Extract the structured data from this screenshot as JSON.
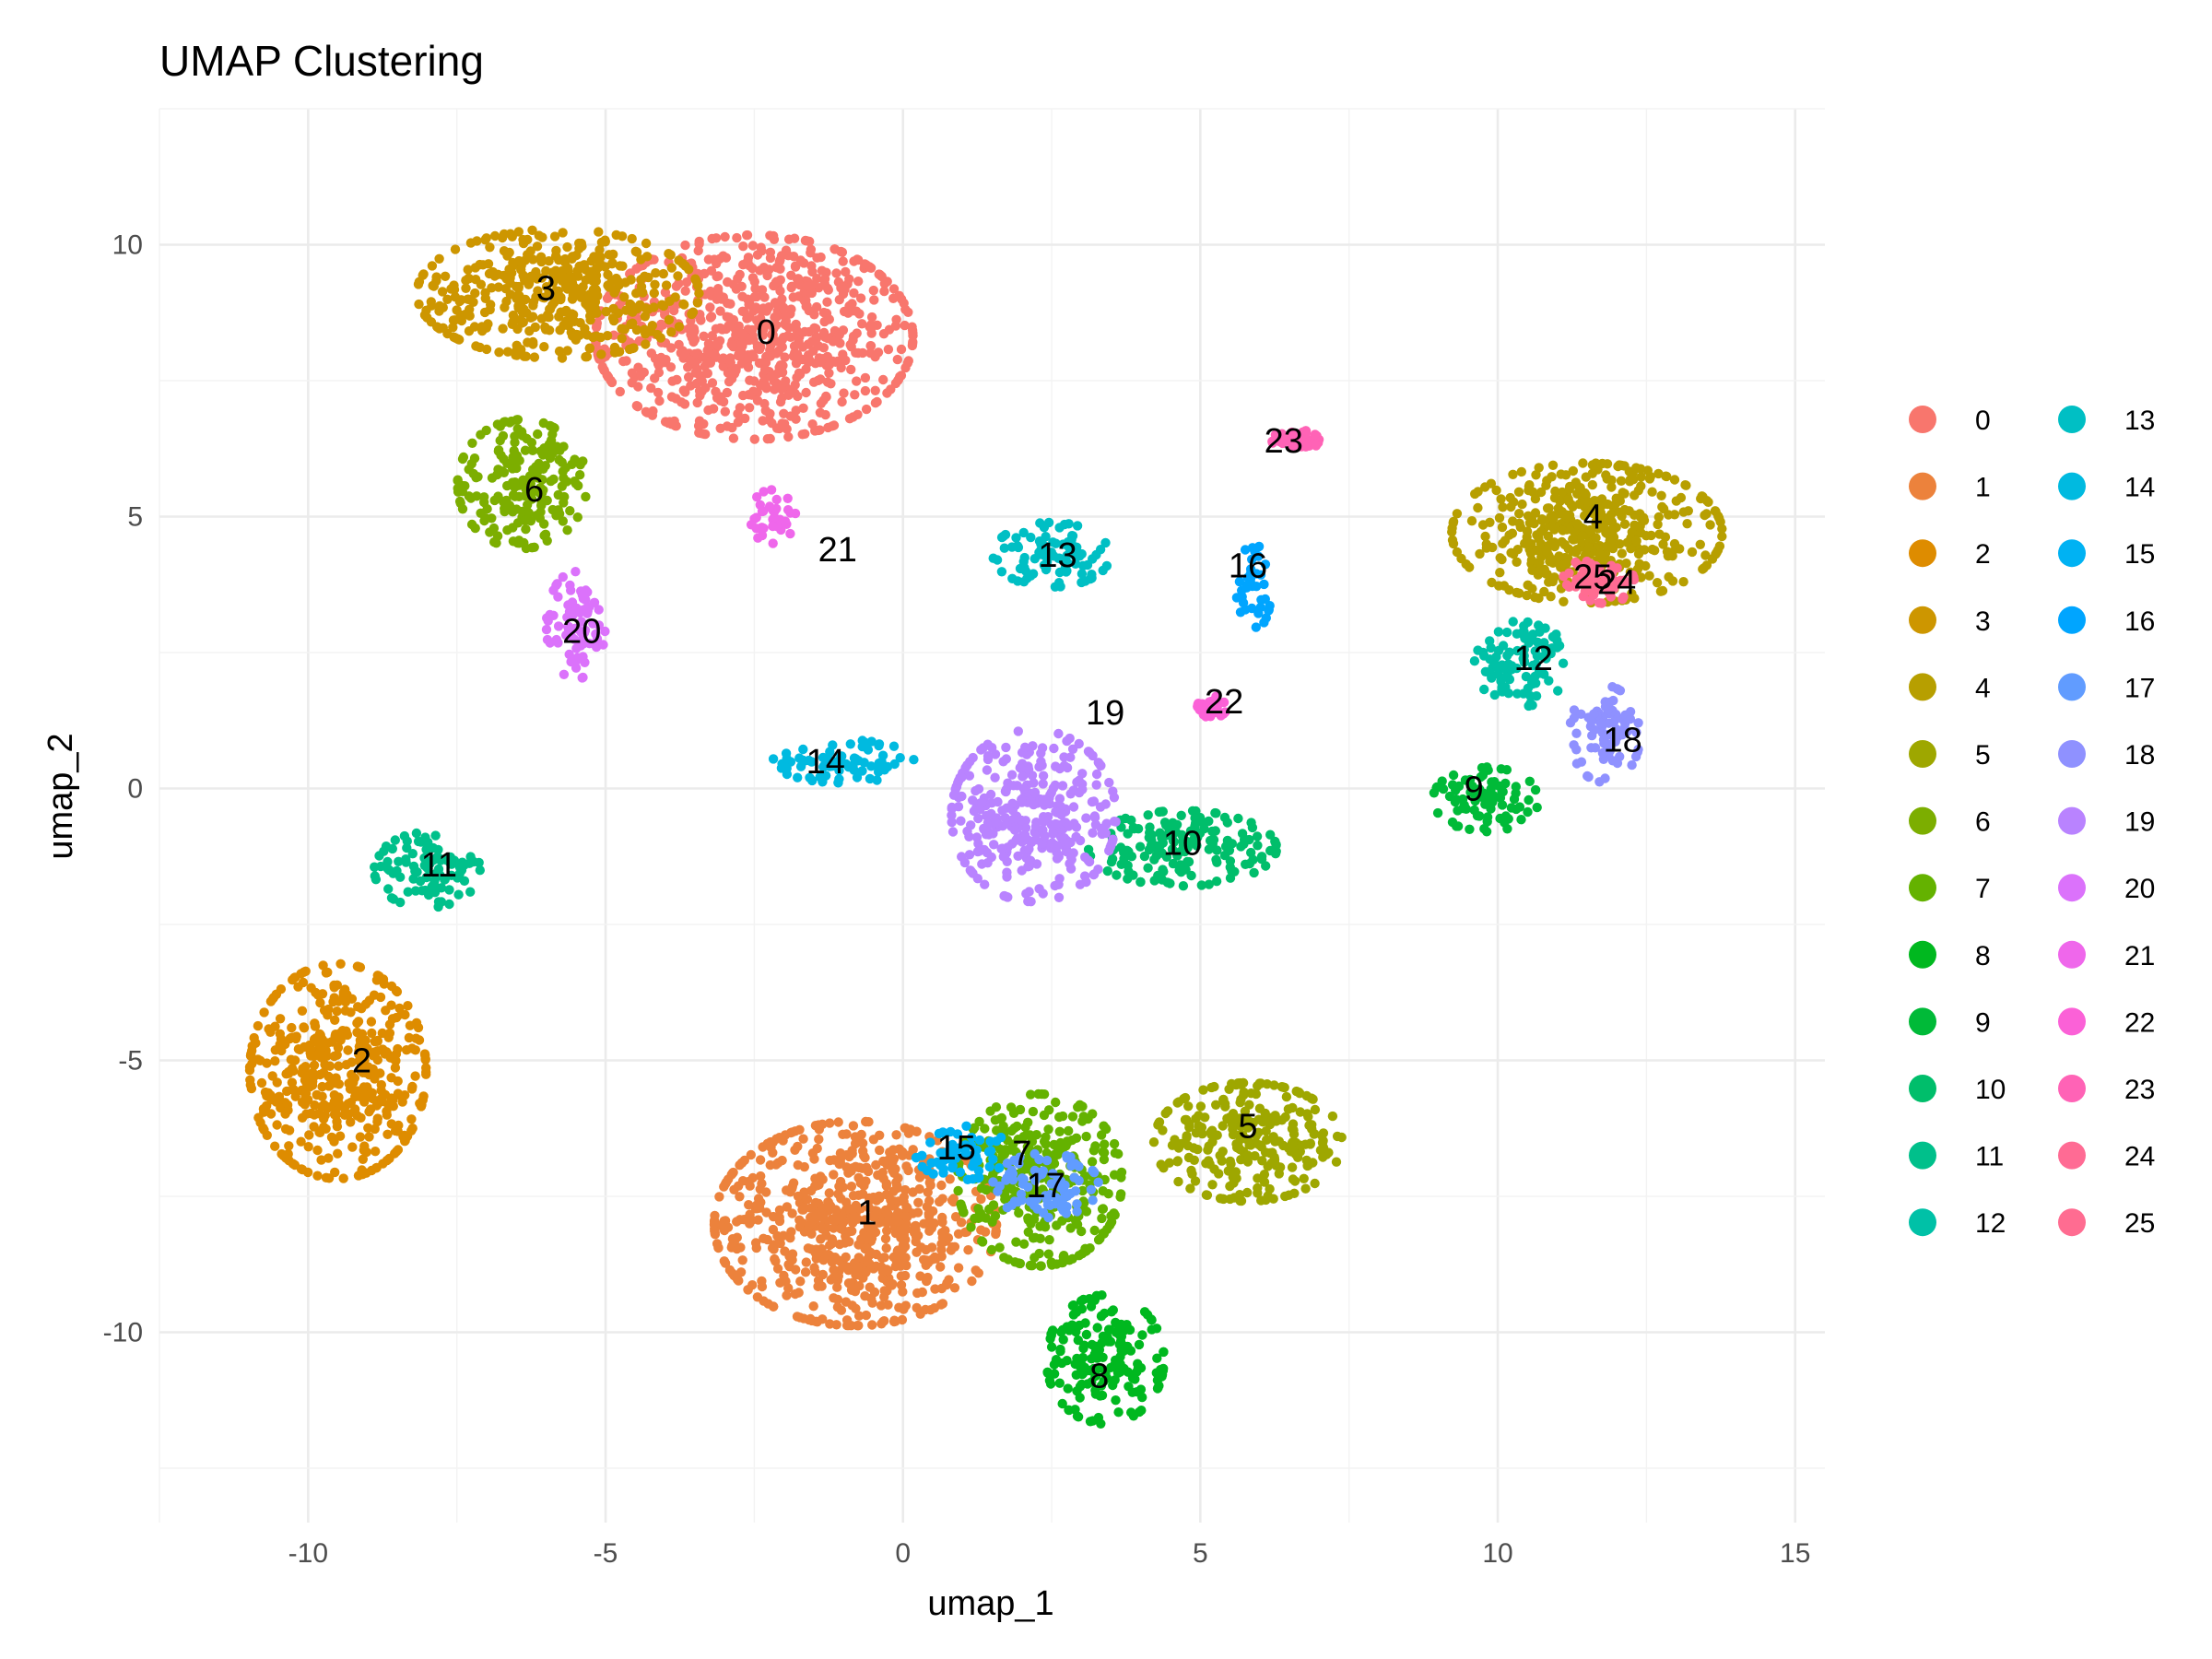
{
  "chart_data": {
    "type": "scatter",
    "title": "UMAP Clustering",
    "xlabel": "umap_1",
    "ylabel": "umap_2",
    "xlim": [
      -12.5,
      15.5
    ],
    "ylim": [
      -13.5,
      12.5
    ],
    "x_ticks": [
      -10,
      -5,
      0,
      5,
      10,
      15
    ],
    "y_ticks": [
      -10,
      -5,
      0,
      5,
      10
    ],
    "x_tick_labels": [
      "-10",
      "-5",
      "0",
      "5",
      "10",
      "15"
    ],
    "y_tick_labels": [
      "-10",
      "-5",
      "0",
      "5",
      "10"
    ],
    "grid": true,
    "legend_position": "right",
    "legend_columns": 2,
    "clusters": [
      {
        "name": "0",
        "color": "#F8766D",
        "center": [
          -2.5,
          8.3
        ],
        "spread": [
          2.7,
          1.9
        ],
        "label_pos": [
          -2.3,
          8.4
        ]
      },
      {
        "name": "1",
        "color": "#EC823C",
        "center": [
          -0.8,
          -8.0
        ],
        "spread": [
          2.4,
          1.9
        ],
        "label_pos": [
          -0.6,
          -7.8
        ]
      },
      {
        "name": "2",
        "color": "#DE8C00",
        "center": [
          -9.5,
          -5.2
        ],
        "spread": [
          1.5,
          2.0
        ],
        "label_pos": [
          -9.1,
          -5.0
        ]
      },
      {
        "name": "3",
        "color": "#CD9600",
        "center": [
          -5.8,
          9.1
        ],
        "spread": [
          2.4,
          1.2
        ],
        "label_pos": [
          -6.0,
          9.2
        ]
      },
      {
        "name": "4",
        "color": "#B79F00",
        "center": [
          11.5,
          4.7
        ],
        "spread": [
          2.3,
          1.3
        ],
        "label_pos": [
          11.6,
          5.0
        ]
      },
      {
        "name": "5",
        "color": "#9EA700",
        "center": [
          5.8,
          -6.5
        ],
        "spread": [
          1.6,
          1.1
        ],
        "label_pos": [
          5.8,
          -6.2
        ]
      },
      {
        "name": "6",
        "color": "#7CAE00",
        "center": [
          -6.4,
          5.6
        ],
        "spread": [
          1.1,
          1.2
        ],
        "label_pos": [
          -6.2,
          5.5
        ]
      },
      {
        "name": "7",
        "color": "#64B200",
        "center": [
          2.3,
          -7.2
        ],
        "spread": [
          1.4,
          1.6
        ],
        "label_pos": [
          2.0,
          -6.7
        ]
      },
      {
        "name": "8",
        "color": "#00B81F",
        "center": [
          3.4,
          -10.5
        ],
        "spread": [
          1.0,
          1.2
        ],
        "label_pos": [
          3.3,
          -10.8
        ]
      },
      {
        "name": "9",
        "color": "#00BA38",
        "center": [
          9.8,
          -0.2
        ],
        "spread": [
          0.9,
          0.6
        ],
        "label_pos": [
          9.6,
          0.0
        ]
      },
      {
        "name": "10",
        "color": "#00BE6B",
        "center": [
          4.7,
          -1.1
        ],
        "spread": [
          1.6,
          0.7
        ],
        "label_pos": [
          4.7,
          -1.0
        ]
      },
      {
        "name": "11",
        "color": "#00C08B",
        "center": [
          -8.0,
          -1.5
        ],
        "spread": [
          0.9,
          0.7
        ],
        "label_pos": [
          -7.8,
          -1.4
        ]
      },
      {
        "name": "12",
        "color": "#00C1A7",
        "center": [
          10.4,
          2.3
        ],
        "spread": [
          0.8,
          0.8
        ],
        "label_pos": [
          10.6,
          2.4
        ]
      },
      {
        "name": "13",
        "color": "#00BFC4",
        "center": [
          2.5,
          4.3
        ],
        "spread": [
          1.0,
          0.6
        ],
        "label_pos": [
          2.6,
          4.3
        ]
      },
      {
        "name": "14",
        "color": "#00BAE0",
        "center": [
          -1.0,
          0.5
        ],
        "spread": [
          1.2,
          0.4
        ],
        "label_pos": [
          -1.3,
          0.5
        ]
      },
      {
        "name": "15",
        "color": "#00B2F3",
        "center": [
          1.0,
          -6.7
        ],
        "spread": [
          0.8,
          0.5
        ],
        "label_pos": [
          0.9,
          -6.6
        ]
      },
      {
        "name": "16",
        "color": "#00A5FF",
        "center": [
          5.9,
          3.7
        ],
        "spread": [
          0.3,
          0.8
        ],
        "label_pos": [
          5.8,
          4.1
        ]
      },
      {
        "name": "17",
        "color": "#619CFF",
        "center": [
          2.4,
          -7.3
        ],
        "spread": [
          0.9,
          0.6
        ],
        "label_pos": [
          2.4,
          -7.3
        ]
      },
      {
        "name": "18",
        "color": "#8F91FF",
        "center": [
          11.8,
          1.0
        ],
        "spread": [
          0.6,
          0.9
        ],
        "label_pos": [
          12.1,
          0.9
        ]
      },
      {
        "name": "19",
        "color": "#B983FF",
        "center": [
          2.2,
          -0.5
        ],
        "spread": [
          1.4,
          1.6
        ],
        "label_pos": [
          3.4,
          1.4
        ]
      },
      {
        "name": "20",
        "color": "#DB72FB",
        "center": [
          -5.5,
          3.0
        ],
        "spread": [
          0.5,
          1.0
        ],
        "label_pos": [
          -5.4,
          2.9
        ]
      },
      {
        "name": "21",
        "color": "#EF67EB",
        "center": [
          -2.2,
          5.0
        ],
        "spread": [
          0.4,
          0.5
        ],
        "label_pos": [
          -1.1,
          4.4
        ]
      },
      {
        "name": "22",
        "color": "#FB61D7",
        "center": [
          5.2,
          1.5
        ],
        "spread": [
          0.25,
          0.2
        ],
        "label_pos": [
          5.4,
          1.6
        ]
      },
      {
        "name": "23",
        "color": "#FF63B6",
        "center": [
          6.6,
          6.4
        ],
        "spread": [
          0.4,
          0.2
        ],
        "label_pos": [
          6.4,
          6.4
        ]
      },
      {
        "name": "24",
        "color": "#FF6B94",
        "center": [
          11.8,
          3.8
        ],
        "spread": [
          0.5,
          0.4
        ],
        "label_pos": [
          12.0,
          3.8
        ]
      },
      {
        "name": "25",
        "color": "#FF6C91",
        "center": [
          11.5,
          3.9
        ],
        "spread": [
          0.4,
          0.3
        ],
        "label_pos": [
          11.6,
          3.9
        ]
      }
    ]
  }
}
